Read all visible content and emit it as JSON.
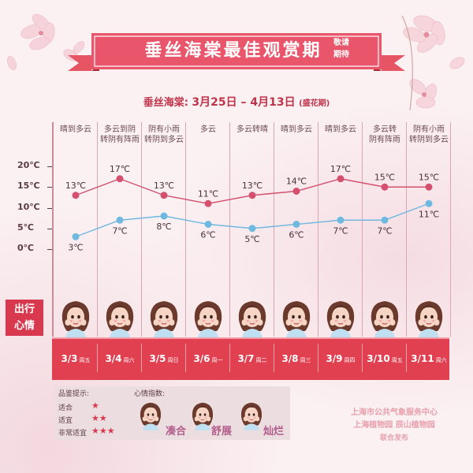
{
  "title": "垂丝海棠最佳观赏期",
  "title_tag_1": "敬请",
  "title_tag_2": "期待",
  "period": {
    "prefix": "垂丝海棠:",
    "range": "3月25日 – 4月13日",
    "suffix": "(盛花期)"
  },
  "weather": [
    [
      "晴到多云"
    ],
    [
      "多云到阴",
      "转阴有阵雨"
    ],
    [
      "阴有小雨",
      "转阴到多云"
    ],
    [
      "多云"
    ],
    [
      "多云转晴"
    ],
    [
      "晴到多云"
    ],
    [
      "晴到多云"
    ],
    [
      "多云转",
      "阴有阵雨"
    ],
    [
      "阴有小雨",
      "转阴到多云"
    ]
  ],
  "mood_label_1": "出行",
  "mood_label_2": "心情",
  "dates": [
    {
      "date": "3/3",
      "weekday": "周五"
    },
    {
      "date": "3/4",
      "weekday": "周六"
    },
    {
      "date": "3/5",
      "weekday": "周日"
    },
    {
      "date": "3/6",
      "weekday": "周一"
    },
    {
      "date": "3/7",
      "weekday": "周二"
    },
    {
      "date": "3/8",
      "weekday": "周三"
    },
    {
      "date": "3/9",
      "weekday": "周四"
    },
    {
      "date": "3/10",
      "weekday": "周五"
    },
    {
      "date": "3/11",
      "weekday": "周六"
    }
  ],
  "chart_data": {
    "type": "line",
    "categories": [
      "3/3",
      "3/4",
      "3/5",
      "3/6",
      "3/7",
      "3/8",
      "3/9",
      "3/10",
      "3/11"
    ],
    "series": [
      {
        "values": [
          13,
          17,
          13,
          11,
          13,
          14,
          17,
          15,
          15
        ],
        "color": "#d4506e"
      },
      {
        "values": [
          3,
          7,
          8,
          6,
          5,
          6,
          7,
          7,
          11
        ],
        "color": "#6fb8e0"
      }
    ],
    "yticks": [
      "20℃",
      "15℃",
      "10℃",
      "5℃",
      "0℃"
    ],
    "ytick_values": [
      20,
      15,
      10,
      5,
      0
    ],
    "unit": "℃",
    "ylim": [
      0,
      20
    ]
  },
  "legend": {
    "rating_title": "品鉴提示:",
    "ratings": [
      {
        "label": "适合",
        "stars": "★"
      },
      {
        "label": "适宜",
        "stars": "★★"
      },
      {
        "label": "非常适宜",
        "stars": "★★★"
      }
    ],
    "mood_title": "心情指数:",
    "moods": [
      "凑合",
      "舒展",
      "灿烂"
    ]
  },
  "credits": {
    "line1": "上海市公共气象服务中心",
    "line2": "上海植物园   辰山植物园",
    "line3": "联合发布"
  },
  "colors": {
    "accent": "#d8394e",
    "high_line": "#d4506e",
    "low_line": "#6fb8e0"
  }
}
